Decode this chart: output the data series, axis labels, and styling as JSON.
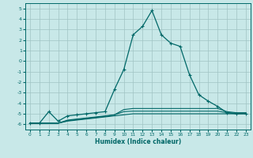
{
  "xlabel": "Humidex (Indice chaleur)",
  "xlim": [
    -0.5,
    23.5
  ],
  "ylim": [
    -6.5,
    5.5
  ],
  "yticks": [
    5,
    4,
    3,
    2,
    1,
    0,
    -1,
    -2,
    -3,
    -4,
    -5,
    -6
  ],
  "xticks": [
    0,
    1,
    2,
    3,
    4,
    5,
    6,
    7,
    8,
    9,
    10,
    11,
    12,
    13,
    14,
    15,
    16,
    17,
    18,
    19,
    20,
    21,
    22,
    23
  ],
  "background_color": "#c8e8e8",
  "grid_color": "#a0c4c4",
  "line_color": "#006868",
  "series": [
    {
      "x": [
        0,
        1,
        2,
        3,
        4,
        5,
        6,
        7,
        8,
        9,
        10,
        11,
        12,
        13,
        14,
        15,
        16,
        17,
        18,
        19,
        20,
        21,
        22,
        23
      ],
      "y": [
        -5.9,
        -5.9,
        -4.8,
        -5.7,
        -5.2,
        -5.1,
        -5.0,
        -4.9,
        -4.8,
        -2.7,
        -0.8,
        2.5,
        3.3,
        4.8,
        2.5,
        1.7,
        1.4,
        -1.3,
        -3.2,
        -3.8,
        -4.3,
        -4.9,
        -5.0,
        -5.0
      ],
      "marker": true
    },
    {
      "x": [
        0,
        1,
        2,
        3,
        4,
        5,
        6,
        7,
        8,
        9,
        10,
        11,
        12,
        13,
        14,
        15,
        16,
        17,
        18,
        19,
        20,
        21,
        22,
        23
      ],
      "y": [
        -5.9,
        -5.9,
        -5.9,
        -5.9,
        -5.6,
        -5.5,
        -5.4,
        -5.3,
        -5.2,
        -5.1,
        -4.6,
        -4.5,
        -4.5,
        -4.5,
        -4.5,
        -4.5,
        -4.5,
        -4.5,
        -4.5,
        -4.5,
        -4.5,
        -4.8,
        -4.9,
        -4.9
      ],
      "marker": false
    },
    {
      "x": [
        0,
        1,
        2,
        3,
        4,
        5,
        6,
        7,
        8,
        9,
        10,
        11,
        12,
        13,
        14,
        15,
        16,
        17,
        18,
        19,
        20,
        21,
        22,
        23
      ],
      "y": [
        -5.9,
        -5.9,
        -5.9,
        -5.9,
        -5.7,
        -5.6,
        -5.5,
        -5.4,
        -5.3,
        -5.2,
        -5.1,
        -5.0,
        -5.0,
        -5.0,
        -5.0,
        -5.0,
        -5.0,
        -5.0,
        -5.0,
        -5.0,
        -5.0,
        -5.0,
        -5.0,
        -5.0
      ],
      "marker": false
    },
    {
      "x": [
        0,
        1,
        2,
        3,
        4,
        5,
        6,
        7,
        8,
        9,
        10,
        11,
        12,
        13,
        14,
        15,
        16,
        17,
        18,
        19,
        20,
        21,
        22,
        23
      ],
      "y": [
        -5.9,
        -5.9,
        -5.9,
        -5.9,
        -5.65,
        -5.55,
        -5.45,
        -5.35,
        -5.25,
        -5.1,
        -4.8,
        -4.75,
        -4.75,
        -4.75,
        -4.75,
        -4.75,
        -4.75,
        -4.75,
        -4.75,
        -4.75,
        -4.75,
        -4.9,
        -4.95,
        -4.95
      ],
      "marker": false
    }
  ]
}
